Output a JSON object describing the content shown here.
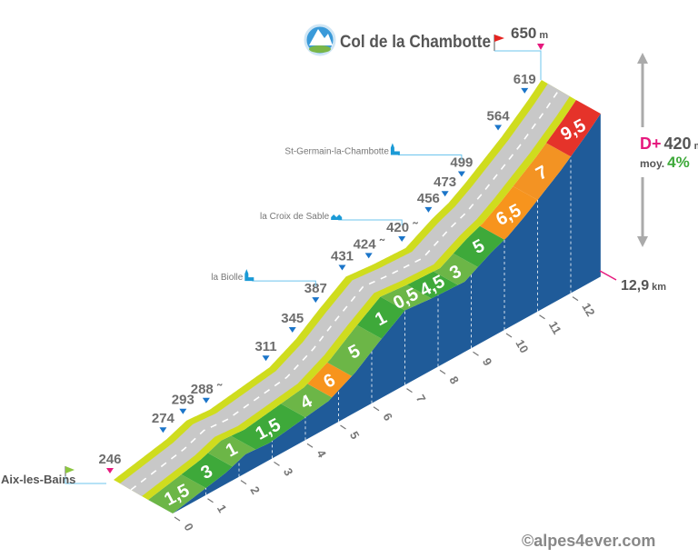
{
  "title": "Col de la Chambotte",
  "summit": {
    "value": "650",
    "unit": "m"
  },
  "start": {
    "name": "Aix-les-Bains",
    "value": "246"
  },
  "stats": {
    "dplus_label": "D+",
    "dplus_value": "420",
    "dplus_unit": "m",
    "avg_label": "moy.",
    "avg_value": "4%",
    "distance_value": "12,9",
    "distance_unit": "km"
  },
  "copyright": "©alpes4ever.com",
  "colors": {
    "road": "#c8c8c8",
    "road_edge": "#cfdc1e",
    "side": "#1f5b99",
    "marker": "#1b75c9",
    "pink": "#e6197e",
    "grey_text": "#6d6d6d"
  },
  "chart_data": {
    "type": "area",
    "title": "Col de la Chambotte",
    "xlabel": "",
    "ylabel": "",
    "x_unit": "km",
    "y_unit": "m",
    "xlim": [
      0,
      12.9
    ],
    "ylim": [
      246,
      650
    ],
    "x_ticks": [
      "0",
      "1",
      "2",
      "3",
      "4",
      "5",
      "6",
      "7",
      "8",
      "9",
      "10",
      "11",
      "12"
    ],
    "profile": [
      {
        "km": 0,
        "alt": 246,
        "label": "246"
      },
      {
        "km": 1.6,
        "alt": 274,
        "label": "274"
      },
      {
        "km": 2.2,
        "alt": 293,
        "label": "293"
      },
      {
        "km": 2.9,
        "alt": 288,
        "label": "288 ˜"
      },
      {
        "km": 4.7,
        "alt": 311,
        "label": "311"
      },
      {
        "km": 5.5,
        "alt": 345,
        "label": "345"
      },
      {
        "km": 6.2,
        "alt": 387,
        "label": "387"
      },
      {
        "km": 7.0,
        "alt": 431,
        "label": "431"
      },
      {
        "km": 7.8,
        "alt": 424,
        "label": "424 ˜"
      },
      {
        "km": 8.8,
        "alt": 420,
        "label": "420 ˜"
      },
      {
        "km": 9.6,
        "alt": 456,
        "label": "456"
      },
      {
        "km": 10.1,
        "alt": 473,
        "label": "473"
      },
      {
        "km": 10.6,
        "alt": 499,
        "label": "499"
      },
      {
        "km": 11.7,
        "alt": 564,
        "label": "564"
      },
      {
        "km": 12.5,
        "alt": 619,
        "label": "619"
      },
      {
        "km": 12.9,
        "alt": 650,
        "label": ""
      }
    ],
    "places": [
      {
        "name": "la Biolle",
        "km": 6.2,
        "icon": "church-icon"
      },
      {
        "name": "la Croix de Sable",
        "km": 8.8,
        "icon": "houses-icon"
      },
      {
        "name": "St-Germain-la-Chambotte",
        "km": 10.6,
        "icon": "church-icon"
      }
    ],
    "gradients": [
      {
        "from": 0,
        "to": 1,
        "pct": "1,5",
        "color": "#6cb647"
      },
      {
        "from": 1,
        "to": 1.8,
        "pct": "3",
        "color": "#3ea93a"
      },
      {
        "from": 1.8,
        "to": 2.5,
        "pct": "1",
        "color": "#6cb647"
      },
      {
        "from": 2.5,
        "to": 4,
        "pct": "1,5",
        "color": "#3ea93a"
      },
      {
        "from": 4,
        "to": 4.8,
        "pct": "4",
        "color": "#6cb647"
      },
      {
        "from": 4.8,
        "to": 5.4,
        "pct": "6",
        "color": "#f7941d"
      },
      {
        "from": 5.4,
        "to": 6.3,
        "pct": "5",
        "color": "#6cb647"
      },
      {
        "from": 6.3,
        "to": 7,
        "pct": "1",
        "color": "#3ea93a"
      },
      {
        "from": 7,
        "to": 7.8,
        "pct": "0,5",
        "color": "#6cb647"
      },
      {
        "from": 7.8,
        "to": 8.6,
        "pct": "4,5",
        "color": "#3ea93a"
      },
      {
        "from": 8.6,
        "to": 9.2,
        "pct": "3",
        "color": "#6cb647"
      },
      {
        "from": 9.2,
        "to": 10,
        "pct": "5",
        "color": "#3ea93a"
      },
      {
        "from": 10,
        "to": 11,
        "pct": "6,5",
        "color": "#f7941d"
      },
      {
        "from": 11,
        "to": 12,
        "pct": "7",
        "color": "#f39323"
      },
      {
        "from": 12,
        "to": 12.9,
        "pct": "9,5",
        "color": "#e5332a"
      }
    ]
  }
}
